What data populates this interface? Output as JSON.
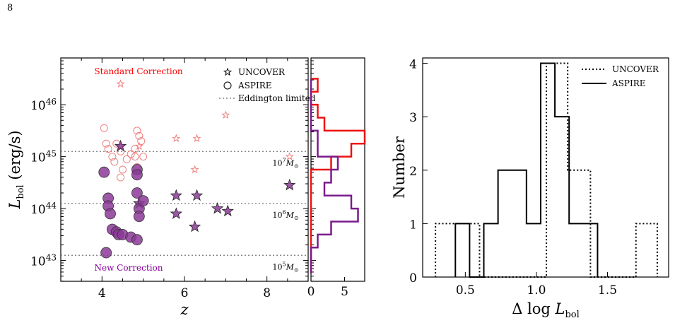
{
  "page_number": "8",
  "chart_data": [
    {
      "type": "scatter",
      "panel": "left",
      "xlabel": "z",
      "ylabel": "L_bol (erg/s)",
      "xlim": [
        3.0,
        9.0
      ],
      "ylim_log10": [
        42.6,
        46.9
      ],
      "yscale": "log",
      "x_ticks": [
        "4",
        "6",
        "8"
      ],
      "y_ticks": [
        "10^43",
        "10^44",
        "10^45",
        "10^46"
      ],
      "annotations": {
        "standard": "Standard Correction",
        "new": "New Correction"
      },
      "colors": {
        "standard": "#f08080",
        "standard_text": "#ff0000",
        "new": "#8b3a96",
        "new_text": "#8b00a0"
      },
      "legend": {
        "placement": "top-right",
        "uncover": "UNCOVER",
        "aspire": "ASPIRE",
        "eddington": "Eddington limited"
      },
      "eddington_lines": [
        {
          "log_lbol": 45.1,
          "label": "10^7 M_⊙"
        },
        {
          "log_lbol": 44.1,
          "label": "10^6 M_⊙"
        },
        {
          "log_lbol": 43.1,
          "label": "10^5 M_⊙"
        }
      ],
      "series": [
        {
          "name": "UNCOVER",
          "correction": "standard",
          "marker": "star",
          "filled": false,
          "points": [
            [
              4.45,
              46.4
            ],
            [
              4.45,
              45.2
            ],
            [
              4.9,
              45.2
            ],
            [
              5.8,
              45.35
            ],
            [
              6.3,
              45.35
            ],
            [
              7.0,
              45.8
            ],
            [
              6.25,
              44.75
            ],
            [
              8.55,
              45.0
            ]
          ]
        },
        {
          "name": "ASPIRE",
          "correction": "standard",
          "marker": "circle",
          "filled": false,
          "points": [
            [
              4.05,
              45.55
            ],
            [
              4.1,
              45.25
            ],
            [
              4.15,
              45.15
            ],
            [
              4.25,
              45.0
            ],
            [
              4.3,
              44.9
            ],
            [
              4.35,
              45.25
            ],
            [
              4.45,
              45.1
            ],
            [
              4.5,
              44.75
            ],
            [
              4.6,
              44.95
            ],
            [
              4.7,
              45.05
            ],
            [
              4.8,
              45.0
            ],
            [
              4.8,
              45.15
            ],
            [
              4.85,
              45.5
            ],
            [
              4.9,
              45.4
            ],
            [
              4.95,
              45.3
            ],
            [
              5.0,
              45.0
            ],
            [
              4.85,
              44.8
            ],
            [
              4.45,
              44.6
            ]
          ]
        },
        {
          "name": "UNCOVER",
          "correction": "new",
          "marker": "star",
          "filled": true,
          "points": [
            [
              4.45,
              45.2
            ],
            [
              4.9,
              44.1
            ],
            [
              5.8,
              44.25
            ],
            [
              5.8,
              43.9
            ],
            [
              6.3,
              44.25
            ],
            [
              6.25,
              43.65
            ],
            [
              6.8,
              44.0
            ],
            [
              7.05,
              43.95
            ],
            [
              8.55,
              44.45
            ]
          ]
        },
        {
          "name": "ASPIRE",
          "correction": "new",
          "marker": "circle",
          "filled": true,
          "points": [
            [
              4.05,
              44.7
            ],
            [
              4.1,
              43.15
            ],
            [
              4.15,
              44.2
            ],
            [
              4.15,
              44.05
            ],
            [
              4.2,
              43.9
            ],
            [
              4.25,
              43.6
            ],
            [
              4.35,
              43.55
            ],
            [
              4.4,
              43.5
            ],
            [
              4.5,
              43.5
            ],
            [
              4.7,
              43.45
            ],
            [
              4.85,
              44.75
            ],
            [
              4.85,
              44.65
            ],
            [
              4.85,
              44.3
            ],
            [
              4.9,
              44.0
            ],
            [
              4.9,
              43.85
            ],
            [
              5.0,
              44.15
            ],
            [
              4.85,
              43.4
            ]
          ]
        }
      ]
    },
    {
      "type": "histogram",
      "panel": "side",
      "orientation": "horizontal",
      "xlim": [
        0,
        8
      ],
      "x_ticks": [
        "0",
        "5"
      ],
      "bin_edges_log10": [
        42.75,
        43.0,
        43.25,
        43.5,
        43.75,
        44.0,
        44.25,
        44.5,
        44.75,
        45.0,
        45.25,
        45.5,
        45.75,
        46.0,
        46.25,
        46.5
      ],
      "series": [
        {
          "name": "Standard Correction",
          "color": "#ee1111",
          "counts": [
            0,
            0,
            0,
            0,
            0,
            0,
            0,
            0,
            3,
            6,
            8,
            2,
            1,
            0,
            1
          ]
        },
        {
          "name": "New Correction",
          "color": "#7a1a8c",
          "counts": [
            0,
            0,
            1,
            3,
            7,
            6,
            2,
            3,
            4,
            1,
            1,
            0,
            0,
            0,
            0
          ]
        }
      ]
    },
    {
      "type": "histogram",
      "panel": "right",
      "xlabel": "Δ log L_bol",
      "ylabel": "Number",
      "xlim": [
        0.2,
        1.93
      ],
      "ylim": [
        0,
        4.1
      ],
      "x_ticks": [
        "0.5",
        "1.0",
        "1.5"
      ],
      "y_ticks": [
        "0",
        "1",
        "2",
        "3",
        "4"
      ],
      "legend": {
        "placement": "top-right"
      },
      "series": [
        {
          "name": "UNCOVER",
          "style": "dotted",
          "bin_edges": [
            0.29,
            0.6,
            0.76,
            1.07,
            1.22,
            1.38,
            1.7,
            1.85
          ],
          "counts": [
            1,
            0,
            0,
            4,
            2,
            0,
            1
          ]
        },
        {
          "name": "ASPIRE",
          "style": "solid",
          "bin_edges": [
            0.43,
            0.53,
            0.63,
            0.73,
            0.83,
            0.93,
            1.03,
            1.13,
            1.23,
            1.33,
            1.43
          ],
          "counts": [
            1,
            0,
            1,
            2,
            2,
            1,
            4,
            3,
            1,
            1
          ]
        }
      ]
    }
  ]
}
